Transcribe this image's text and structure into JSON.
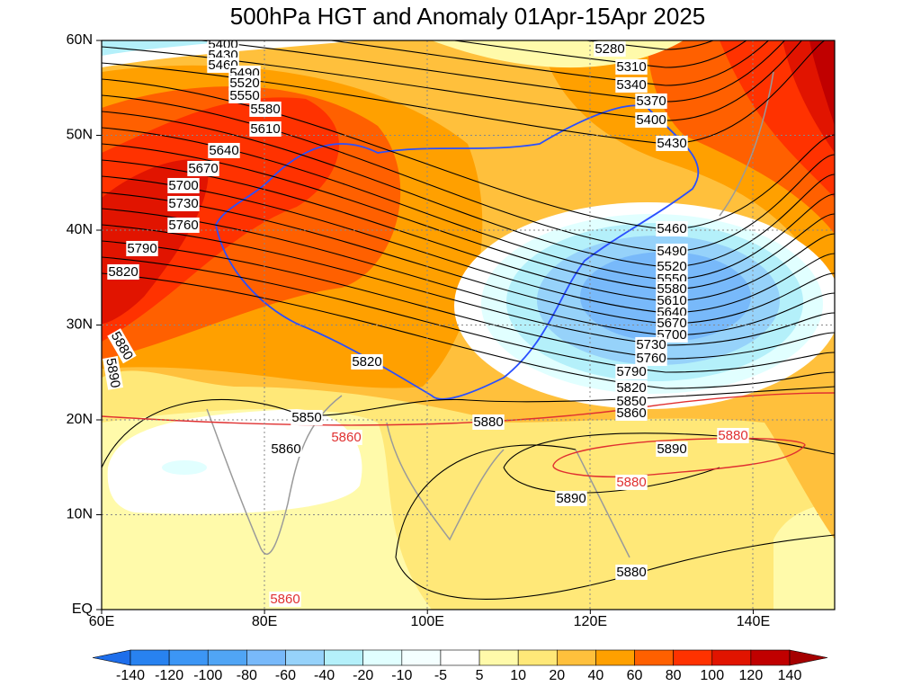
{
  "title": "500hPa HGT and Anomaly 01Apr-15Apr 2025",
  "map": {
    "lat_labels": [
      "EQ",
      "10N",
      "20N",
      "30N",
      "40N",
      "50N",
      "60N"
    ],
    "lon_labels": [
      "60E",
      "80E",
      "100E",
      "120E",
      "140E"
    ],
    "height_contour_labels": [
      "5280",
      "5310",
      "5340",
      "5370",
      "5400",
      "5430",
      "5460",
      "5490",
      "5520",
      "5550",
      "5580",
      "5610",
      "5640",
      "5670",
      "5700",
      "5730",
      "5760",
      "5790",
      "5820",
      "5850",
      "5860",
      "5890",
      "5890",
      "5880",
      "5880",
      "5820",
      "5850",
      "5860",
      "5880",
      "5890",
      "5400",
      "5430",
      "5460",
      "5490",
      "5520",
      "5550",
      "5580",
      "5610",
      "5640",
      "5670",
      "5700",
      "5730",
      "5760",
      "5790",
      "5820"
    ],
    "ridge_contour_labels": [
      "5860",
      "5880",
      "5880",
      "5860"
    ]
  },
  "colorbar": {
    "labels": [
      -140,
      -120,
      -100,
      -80,
      -60,
      -40,
      -20,
      -10,
      -5,
      5,
      10,
      20,
      40,
      60,
      80,
      100,
      120,
      140
    ],
    "colors": [
      "#1e6eeb",
      "#2882f0",
      "#3c96f5",
      "#50a5f5",
      "#78b9fa",
      "#96d2fa",
      "#b4f0fa",
      "#e1ffff",
      "#f4ffff",
      "#ffffff",
      "#fffaaa",
      "#ffe878",
      "#ffc03c",
      "#ffa000",
      "#ff6000",
      "#ff3200",
      "#e11400",
      "#c00000",
      "#a50000"
    ]
  }
}
